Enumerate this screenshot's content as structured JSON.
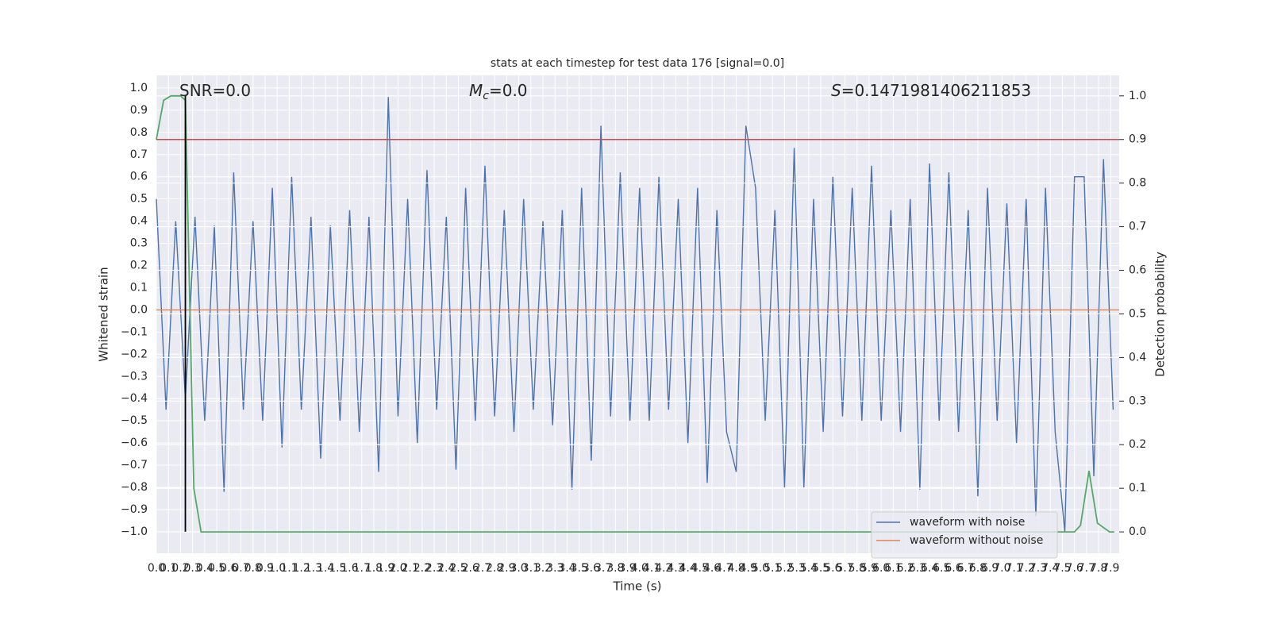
{
  "chart_data": {
    "type": "line",
    "title": "stats at each timestep for test data 176 [signal=0.0]",
    "x_label": "Time (s)",
    "y_label": "Whitened strain",
    "y2_label": "Detection probability",
    "xlim": [
      0,
      7.97
    ],
    "ylim": [
      -1.097,
      1.057
    ],
    "y2lim": [
      -0.049,
      1.047
    ],
    "grid": true,
    "legend": "lower right",
    "xticks": [
      {
        "value": 0,
        "label": "0.0"
      },
      0.1,
      0.2,
      0.3,
      0.4,
      0.5,
      0.6,
      0.7,
      0.8,
      0.9,
      {
        "value": 1,
        "label": "1.0"
      },
      1.1,
      1.2,
      1.3,
      1.4,
      1.5,
      1.6,
      1.7,
      1.8,
      1.9,
      {
        "value": 2,
        "label": "2.0"
      },
      2.1,
      2.2,
      2.3,
      2.4,
      2.5,
      2.6,
      2.7,
      2.8,
      2.9,
      {
        "value": 3,
        "label": "3.0"
      },
      3.1,
      3.2,
      3.3,
      3.4,
      3.5,
      3.6,
      3.7,
      3.8,
      3.9,
      {
        "value": 4,
        "label": "4.0"
      },
      4.1,
      4.2,
      4.3,
      4.4,
      4.5,
      4.6,
      4.7,
      4.8,
      4.9,
      {
        "value": 5,
        "label": "5.0"
      },
      5.1,
      5.2,
      5.3,
      5.4,
      5.5,
      5.6,
      5.7,
      5.8,
      5.9,
      {
        "value": 6,
        "label": "6.0"
      },
      6.1,
      6.2,
      6.3,
      6.4,
      6.5,
      6.6,
      6.7,
      6.8,
      6.9,
      {
        "value": 7,
        "label": "7.0"
      },
      7.1,
      7.2,
      7.3,
      7.4,
      7.5,
      7.6,
      7.7,
      7.8,
      7.9
    ],
    "yticks": [
      {
        "value": -1,
        "label": "−1.0"
      },
      {
        "value": -0.9,
        "label": "−0.9"
      },
      {
        "value": -0.8,
        "label": "−0.8"
      },
      {
        "value": -0.7,
        "label": "−0.7"
      },
      {
        "value": -0.6,
        "label": "−0.6"
      },
      {
        "value": -0.5,
        "label": "−0.5"
      },
      {
        "value": -0.4,
        "label": "−0.4"
      },
      {
        "value": -0.3,
        "label": "−0.3"
      },
      {
        "value": -0.2,
        "label": "−0.2"
      },
      {
        "value": -0.1,
        "label": "−0.1"
      },
      {
        "value": 0,
        "label": "0.0"
      },
      0.1,
      0.2,
      0.3,
      0.4,
      0.5,
      0.6,
      0.7,
      0.8,
      0.9,
      {
        "value": 1,
        "label": "1.0"
      }
    ],
    "y2ticks": [
      {
        "value": 0,
        "label": "0.0"
      },
      0.1,
      0.2,
      0.3,
      0.4,
      0.5,
      0.6,
      0.7,
      0.8,
      0.9,
      {
        "value": 1,
        "label": "1.0"
      }
    ],
    "annotations": [
      {
        "text": "SNR=0.0"
      },
      {
        "symbol": "M",
        "subscript": "c",
        "text": "=0.0"
      },
      {
        "symbol": "S",
        "text": "=0.1471981406211853"
      }
    ],
    "series": [
      {
        "name": "waveform with noise",
        "color": "#4c72b0",
        "x": [
          0,
          0.08,
          0.16,
          0.24,
          0.32,
          0.4,
          0.48,
          0.56,
          0.64,
          0.72,
          0.8,
          0.88,
          0.96,
          1.04,
          1.12,
          1.2,
          1.28,
          1.36,
          1.44,
          1.52,
          1.6,
          1.68,
          1.76,
          1.84,
          1.92,
          2,
          2.08,
          2.16,
          2.24,
          2.32,
          2.4,
          2.48,
          2.56,
          2.64,
          2.72,
          2.8,
          2.88,
          2.96,
          3.04,
          3.12,
          3.2,
          3.28,
          3.36,
          3.44,
          3.52,
          3.6,
          3.68,
          3.76,
          3.84,
          3.92,
          4,
          4.08,
          4.16,
          4.24,
          4.32,
          4.4,
          4.48,
          4.56,
          4.64,
          4.72,
          4.8,
          4.88,
          4.96,
          5.04,
          5.12,
          5.2,
          5.28,
          5.36,
          5.44,
          5.52,
          5.6,
          5.68,
          5.76,
          5.84,
          5.92,
          6,
          6.08,
          6.16,
          6.24,
          6.32,
          6.4,
          6.48,
          6.56,
          6.64,
          6.72,
          6.8,
          6.88,
          6.96,
          7.04,
          7.12,
          7.2,
          7.28,
          7.36,
          7.44,
          7.52,
          7.6,
          7.68,
          7.76,
          7.84,
          7.92
        ],
        "values": [
          0.5,
          -0.45,
          0.4,
          -0.4,
          0.42,
          -0.5,
          0.38,
          -0.82,
          0.62,
          -0.45,
          0.4,
          -0.5,
          0.55,
          -0.62,
          0.6,
          -0.45,
          0.42,
          -0.67,
          0.38,
          -0.5,
          0.45,
          -0.55,
          0.42,
          -0.73,
          0.96,
          -0.48,
          0.5,
          -0.6,
          0.63,
          -0.45,
          0.42,
          -0.72,
          0.55,
          -0.5,
          0.65,
          -0.48,
          0.45,
          -0.55,
          0.5,
          -0.45,
          0.4,
          -0.52,
          0.45,
          -0.81,
          0.55,
          -0.68,
          0.83,
          -0.48,
          0.62,
          -0.5,
          0.55,
          -0.5,
          0.6,
          -0.45,
          0.5,
          -0.6,
          0.55,
          -0.78,
          0.45,
          -0.55,
          -0.73,
          0.83,
          0.55,
          -0.5,
          0.45,
          -0.8,
          0.73,
          -0.8,
          0.5,
          -0.55,
          0.6,
          -0.48,
          0.55,
          -0.5,
          0.65,
          -0.5,
          0.45,
          -0.55,
          0.5,
          -0.81,
          0.66,
          -0.5,
          0.62,
          -0.55,
          0.45,
          -0.84,
          0.55,
          -0.5,
          0.48,
          -0.6,
          0.5,
          -0.93,
          0.55,
          -0.55,
          -1.0,
          0.6,
          0.6,
          -0.75,
          0.68,
          -0.45
        ]
      },
      {
        "name": "waveform without noise",
        "color": "#dd8452",
        "x": [
          0,
          7.97
        ],
        "values": [
          0,
          0
        ]
      },
      {
        "axis": "y2",
        "color": "#55a868",
        "x": [
          0,
          0.06,
          0.12,
          0.2,
          0.24,
          0.31,
          0.37,
          1.0,
          2.0,
          3.0,
          4.0,
          5.0,
          6.0,
          7.0,
          7.6,
          7.65,
          7.72,
          7.79,
          7.89,
          7.93
        ],
        "values": [
          0.9,
          0.99,
          1.0,
          1.0,
          0.99,
          0.1,
          0,
          0,
          0,
          0,
          0,
          0,
          0,
          0,
          0,
          0.015,
          0.14,
          0.02,
          0,
          0
        ]
      }
    ],
    "hline": {
      "axis": "y2",
      "value": 0.9,
      "color": "#c44e52"
    },
    "vline": {
      "x": 0.24,
      "color": "#000000"
    }
  }
}
